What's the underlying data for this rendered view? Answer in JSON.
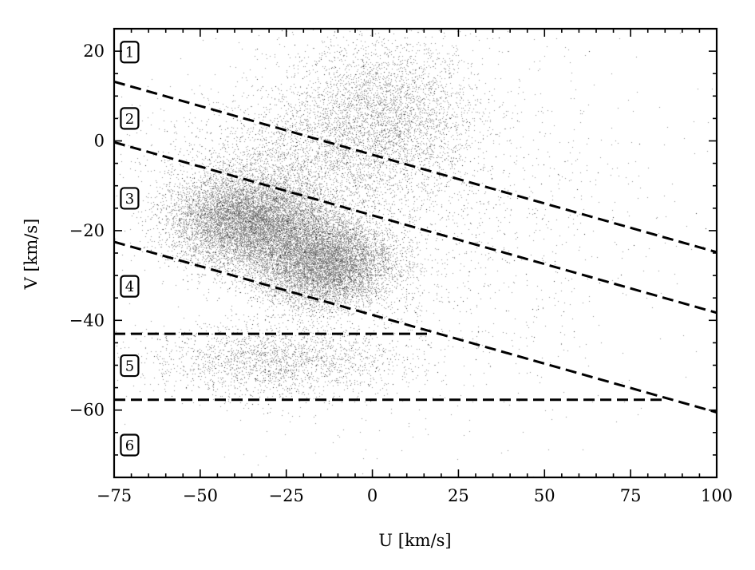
{
  "chart_data": {
    "type": "scatter",
    "title": "",
    "xlabel": "U [km/s]",
    "ylabel": "V [km/s]",
    "xlim": [
      -75,
      100
    ],
    "ylim": [
      -75,
      25
    ],
    "x_ticks": [
      -75,
      -50,
      -25,
      0,
      25,
      50,
      75,
      100
    ],
    "x_tick_labels": [
      "−75",
      "−50",
      "−25",
      "0",
      "25",
      "50",
      "75",
      "100"
    ],
    "y_ticks": [
      -60,
      -40,
      -20,
      0,
      20
    ],
    "y_tick_labels": [
      "−60",
      "−40",
      "−20",
      "0",
      "20"
    ],
    "grid": false,
    "point_color": "#8c8c8c",
    "dense_point_color": "#2a2a2a",
    "line_color": "#000000",
    "clusters": [
      {
        "u": 2,
        "v": 6,
        "su": 14,
        "sv": 8,
        "weight": 0.22
      },
      {
        "u": -36,
        "v": -18,
        "su": 11,
        "sv": 5,
        "weight": 0.16
      },
      {
        "u": -14,
        "v": -27,
        "su": 10,
        "sv": 5,
        "weight": 0.14
      },
      {
        "u": -22,
        "v": -6,
        "su": 20,
        "sv": 7,
        "weight": 0.12
      },
      {
        "u": -28,
        "v": -49,
        "su": 18,
        "sv": 4,
        "weight": 0.06
      },
      {
        "u": 10,
        "v": -18,
        "su": 35,
        "sv": 22,
        "weight": 0.3
      }
    ],
    "dividing_lines": [
      {
        "x": [
          -75,
          100
        ],
        "y": [
          13.2,
          -24.8
        ]
      },
      {
        "x": [
          -75,
          100
        ],
        "y": [
          -0.3,
          -38.3
        ]
      },
      {
        "x": [
          -75,
          100
        ],
        "y": [
          -22.5,
          -60.5
        ]
      },
      {
        "x": [
          -75,
          17
        ],
        "y": [
          -43,
          -43
        ]
      },
      {
        "x": [
          -75,
          85
        ],
        "y": [
          -57.7,
          -57.7
        ]
      }
    ],
    "regions": [
      {
        "label": "1",
        "u": -70.5,
        "v": 19.8
      },
      {
        "label": "2",
        "u": -70.5,
        "v": 5.0
      },
      {
        "label": "3",
        "u": -70.5,
        "v": -12.8
      },
      {
        "label": "4",
        "u": -70.5,
        "v": -32.4
      },
      {
        "label": "5",
        "u": -70.5,
        "v": -50.1
      },
      {
        "label": "6",
        "u": -70.5,
        "v": -67.8
      }
    ]
  }
}
